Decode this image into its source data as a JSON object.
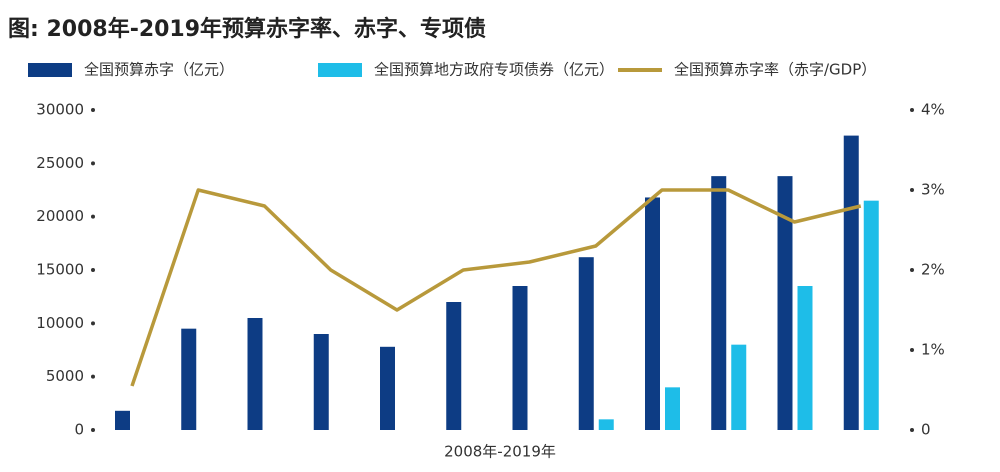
{
  "chart_data": {
    "type": "bar",
    "title": "图: 2008年-2019年预算赤字率、赤字、专项债",
    "x_label": "2008年-2019年",
    "categories": [
      null,
      null,
      null,
      null,
      null,
      null,
      null,
      null,
      null,
      null,
      null,
      null
    ],
    "series": [
      {
        "name": "全国预算赤字（亿元）",
        "color": "#0d3c84",
        "values": [
          1800,
          9500,
          10500,
          9000,
          7800,
          12000,
          13500,
          16200,
          21800,
          23800,
          23800,
          27600
        ]
      },
      {
        "name": "全国预算地方政府专项债券（亿元）",
        "color": "#1ebde8",
        "values": [
          null,
          null,
          null,
          null,
          null,
          null,
          null,
          1000,
          4000,
          8000,
          13500,
          21500
        ]
      },
      {
        "name": "全国预算赤字率（赤字/GDP）",
        "color": "#b8993b",
        "type": "line",
        "axis": "y2",
        "values": [
          0.55,
          3.0,
          2.8,
          2.0,
          1.5,
          2.0,
          2.1,
          2.3,
          3.0,
          3.0,
          2.6,
          2.8
        ]
      }
    ],
    "ylim": [
      0,
      30000
    ],
    "yticks": [
      0,
      5000,
      10000,
      15000,
      20000,
      25000,
      30000
    ],
    "y2lim": [
      0,
      4
    ],
    "y2ticks": [
      0,
      {
        "value": 1,
        "label": "1%"
      },
      {
        "value": 2,
        "label": "2%"
      },
      {
        "value": 3,
        "label": "3%"
      },
      {
        "value": 4,
        "label": "4%"
      }
    ]
  }
}
